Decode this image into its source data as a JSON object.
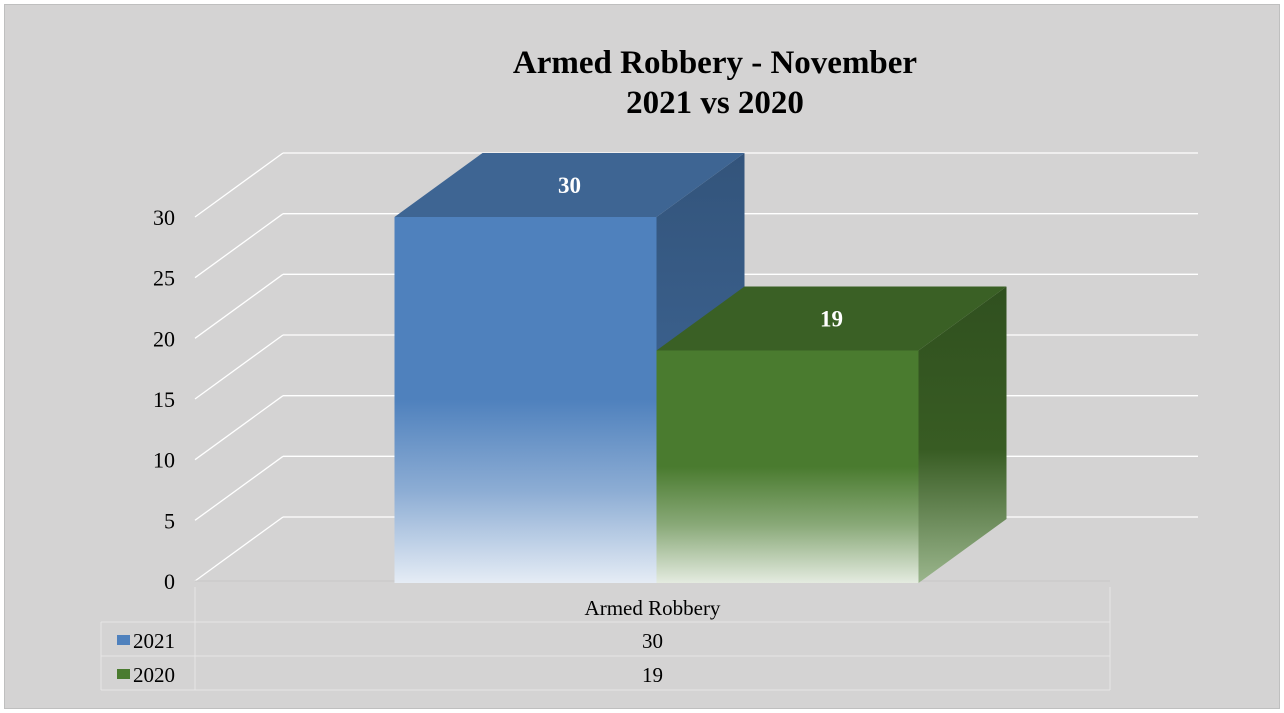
{
  "chart_data": {
    "type": "bar",
    "title_lines": [
      "Armed Robbery - November",
      "2021 vs 2020"
    ],
    "categories": [
      "Armed Robbery"
    ],
    "series": [
      {
        "name": "2021",
        "values": [
          30
        ],
        "color": "#4f81bd"
      },
      {
        "name": "2020",
        "values": [
          19
        ],
        "color": "#4a7b2f"
      }
    ],
    "ylim": [
      0,
      30
    ],
    "yticks": [
      0,
      5,
      10,
      15,
      20,
      25,
      30
    ],
    "grid": true,
    "data_labels": true,
    "legend": "data-table"
  }
}
